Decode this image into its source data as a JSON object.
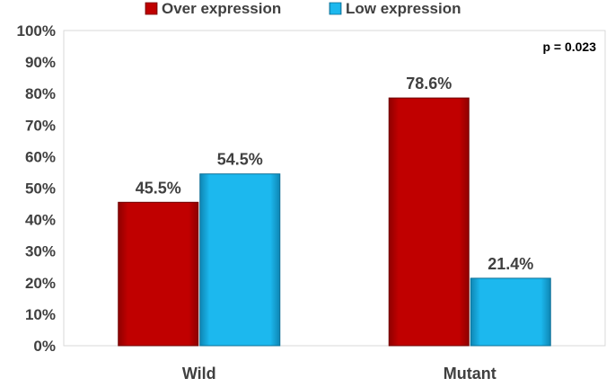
{
  "chart_data": {
    "type": "bar",
    "categories": [
      "Wild",
      "Mutant"
    ],
    "series": [
      {
        "name": "Over expression",
        "values": [
          45.5,
          78.6
        ],
        "color": "#c00000"
      },
      {
        "name": "Low expression",
        "values": [
          54.5,
          21.4
        ],
        "color": "#1cb8ee"
      }
    ],
    "data_labels": [
      [
        "45.5%",
        "78.6%"
      ],
      [
        "54.5%",
        "21.4%"
      ]
    ],
    "y_ticks": [
      "0%",
      "10%",
      "20%",
      "30%",
      "40%",
      "50%",
      "60%",
      "70%",
      "80%",
      "90%",
      "100%"
    ],
    "ylim": [
      0,
      100
    ],
    "annotation": "p = 0.023",
    "legend_position": "top",
    "grid": false
  }
}
